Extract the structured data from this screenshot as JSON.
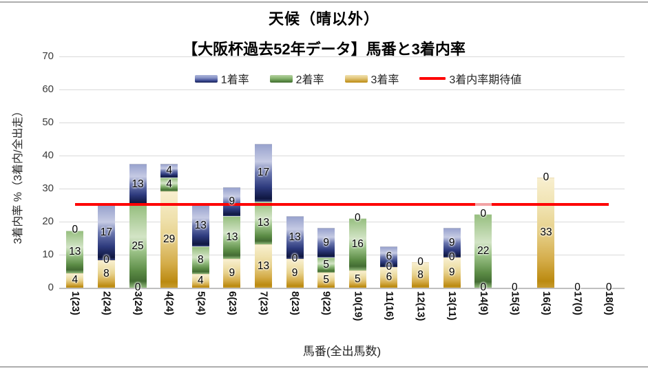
{
  "chart_data": {
    "type": "bar",
    "subtype": "stacked-columns-with-expectation-line",
    "title": "天候（晴以外）",
    "subtitle": "【大阪杯過去52年データ】馬番と3着内率",
    "xlabel": "馬番(全出馬数)",
    "ylabel": "3着内率 %（3着内/全出走）",
    "ylim": [
      0,
      70
    ],
    "ytick_step": 10,
    "grid": "horizontal",
    "legend_position": "top",
    "categories": [
      "1(23)",
      "2(24)",
      "3(24)",
      "4(24)",
      "5(24)",
      "6(23)",
      "7(23)",
      "8(23)",
      "9(22)",
      "10(19)",
      "11(16)",
      "12(13)",
      "13(11)",
      "14(9)",
      "15(3)",
      "16(3)",
      "17(0)",
      "18(0)"
    ],
    "stack_order_bottom_to_top": [
      "3着率",
      "2着率",
      "1着率"
    ],
    "series": [
      {
        "name": "1着率",
        "key": "win",
        "color": "#3c4a92",
        "values": [
          0,
          16.67,
          12.5,
          4.17,
          12.5,
          8.7,
          17.39,
          13.04,
          9.09,
          0,
          6.25,
          0,
          9.09,
          0,
          0,
          0,
          0,
          0
        ]
      },
      {
        "name": "2着率",
        "key": "second",
        "color": "#578742",
        "values": [
          13.04,
          0,
          25,
          4.17,
          8.33,
          13.04,
          13.04,
          0,
          4.55,
          15.79,
          0,
          0,
          0,
          22.22,
          0,
          0,
          0,
          0
        ]
      },
      {
        "name": "3着率",
        "key": "third",
        "color": "#c79b2e",
        "values": [
          4.35,
          8.33,
          0,
          29.17,
          4.17,
          8.7,
          13.04,
          8.7,
          4.55,
          5.26,
          6.25,
          7.69,
          9.09,
          0,
          0,
          33.33,
          0,
          0
        ]
      }
    ],
    "bar_labels": [
      [
        {
          "t": "0",
          "v": 17.4
        },
        {
          "t": "13",
          "v": 10.9
        },
        {
          "t": "4",
          "v": 2.2
        }
      ],
      [
        {
          "t": "17",
          "v": 16.7
        },
        {
          "t": "0",
          "v": 8.3
        },
        {
          "t": "8",
          "v": 4.2
        }
      ],
      [
        {
          "t": "13",
          "v": 31.3
        },
        {
          "t": "25",
          "v": 12.5
        },
        {
          "t": "0",
          "v": 0
        }
      ],
      [
        {
          "t": "4",
          "v": 35.4
        },
        {
          "t": "4",
          "v": 31.3
        },
        {
          "t": "29",
          "v": 14.6
        }
      ],
      [
        {
          "t": "13",
          "v": 18.8
        },
        {
          "t": "8",
          "v": 8.3
        },
        {
          "t": "4",
          "v": 2.1
        }
      ],
      [
        {
          "t": "9",
          "v": 26.1
        },
        {
          "t": "13",
          "v": 15.2
        },
        {
          "t": "9",
          "v": 4.3
        }
      ],
      [
        {
          "t": "17",
          "v": 34.8
        },
        {
          "t": "13",
          "v": 19.6
        },
        {
          "t": "13",
          "v": 6.5
        }
      ],
      [
        {
          "t": "13",
          "v": 15.2
        },
        {
          "t": "0",
          "v": 8.7
        },
        {
          "t": "9",
          "v": 4.3
        }
      ],
      [
        {
          "t": "9",
          "v": 13.6
        },
        {
          "t": "5",
          "v": 6.8
        },
        {
          "t": "5",
          "v": 2.3
        }
      ],
      [
        {
          "t": "0",
          "v": 21.1
        },
        {
          "t": "16",
          "v": 13.2
        },
        {
          "t": "5",
          "v": 2.6
        }
      ],
      [
        {
          "t": "6",
          "v": 9.4
        },
        {
          "t": "0",
          "v": 6.3
        },
        {
          "t": "6",
          "v": 3.1
        }
      ],
      [
        {
          "t": "0",
          "v": 7.7
        },
        {
          "t": "8",
          "v": 3.8
        }
      ],
      [
        {
          "t": "9",
          "v": 13.6
        },
        {
          "t": "0",
          "v": 9.1
        },
        {
          "t": "9",
          "v": 4.5
        }
      ],
      [
        {
          "t": "0",
          "v": 22.2
        },
        {
          "t": "22",
          "v": 11.1
        },
        {
          "t": "0",
          "v": 0
        }
      ],
      [
        {
          "t": "0",
          "v": 0
        }
      ],
      [
        {
          "t": "0",
          "v": 33.3
        },
        {
          "t": "33",
          "v": 16.7
        }
      ],
      [
        {
          "t": "0",
          "v": 0
        }
      ],
      [
        {
          "t": "0",
          "v": 0
        }
      ]
    ],
    "line_series": {
      "name": "3着内率期待値",
      "color": "#fe0101",
      "value": 25.3,
      "light_segment_at_category": "14(9)",
      "light_color": "#f2a2a4"
    }
  }
}
